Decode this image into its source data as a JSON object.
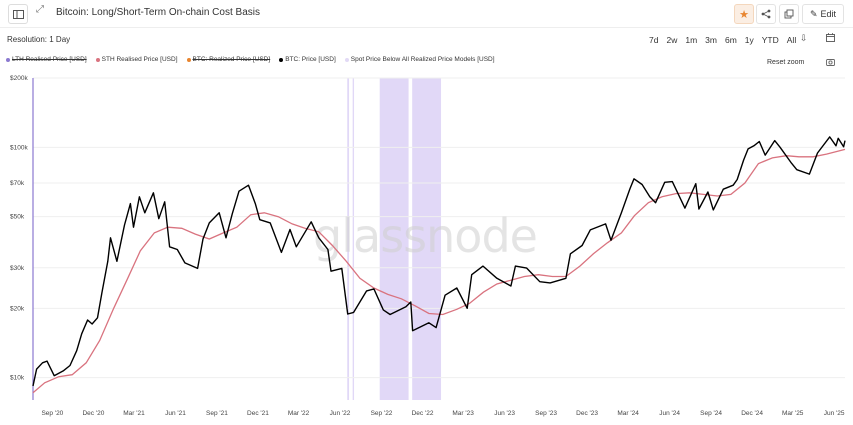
{
  "header": {
    "title": "Bitcoin: Long/Short-Term On-chain Cost Basis",
    "edit_label": "Edit"
  },
  "controls": {
    "resolution": "Resolution: 1 Day",
    "ranges": [
      "7d",
      "2w",
      "1m",
      "3m",
      "6m",
      "1y",
      "YTD",
      "All"
    ],
    "reset_zoom": "Reset zoom"
  },
  "icons": {
    "sidebar": "sidebar-toggle-icon",
    "expand": "expand-icon",
    "favorite": "star-icon",
    "share": "share-icon",
    "copy": "copy-icon",
    "edit": "edit-icon",
    "export": "export-icon",
    "calendar": "calendar-icon",
    "camera": "camera-icon"
  },
  "colors": {
    "btc_price": "#000000",
    "sth_realised": "#d9737f",
    "lth_realised": "#8b79d0",
    "btc_realized": "#e8852f",
    "spot_below": "#c9b8f0",
    "accent": "#e8852f"
  },
  "chart_data": {
    "type": "line",
    "y_scale": "log",
    "ylim": [
      8000,
      200000
    ],
    "y_ticks": [
      {
        "value": 10000,
        "label": "$10k"
      },
      {
        "value": 20000,
        "label": "$20k"
      },
      {
        "value": 30000,
        "label": "$30k"
      },
      {
        "value": 50000,
        "label": "$50k"
      },
      {
        "value": 70000,
        "label": "$70k"
      },
      {
        "value": 100000,
        "label": "$100k"
      },
      {
        "value": 200000,
        "label": "$200k"
      }
    ],
    "x_range": [
      "2020-07-20",
      "2025-06-25"
    ],
    "x_ticks": [
      {
        "date": "2020-09-01",
        "label": "Sep '20"
      },
      {
        "date": "2020-12-01",
        "label": "Dec '20"
      },
      {
        "date": "2021-03-01",
        "label": "Mar '21"
      },
      {
        "date": "2021-06-01",
        "label": "Jun '21"
      },
      {
        "date": "2021-09-01",
        "label": "Sep '21"
      },
      {
        "date": "2021-12-01",
        "label": "Dec '21"
      },
      {
        "date": "2022-03-01",
        "label": "Mar '22"
      },
      {
        "date": "2022-06-01",
        "label": "Jun '22"
      },
      {
        "date": "2022-09-01",
        "label": "Sep '22"
      },
      {
        "date": "2022-12-01",
        "label": "Dec '22"
      },
      {
        "date": "2023-03-01",
        "label": "Mar '23"
      },
      {
        "date": "2023-06-01",
        "label": "Jun '23"
      },
      {
        "date": "2023-09-01",
        "label": "Sep '23"
      },
      {
        "date": "2023-12-01",
        "label": "Dec '23"
      },
      {
        "date": "2024-03-01",
        "label": "Mar '24"
      },
      {
        "date": "2024-06-01",
        "label": "Jun '24"
      },
      {
        "date": "2024-09-01",
        "label": "Sep '24"
      },
      {
        "date": "2024-12-01",
        "label": "Dec '24"
      },
      {
        "date": "2025-03-01",
        "label": "Mar '25"
      },
      {
        "date": "2025-06-01",
        "label": "Jun '25"
      }
    ],
    "legend": [
      {
        "name": "LTH Realised Price [USD]",
        "color": "#8b79d0",
        "hidden": true
      },
      {
        "name": "STH Realised Price [USD]",
        "color": "#d9737f",
        "hidden": false
      },
      {
        "name": "BTC: Realized Price [USD]",
        "color": "#e8852f",
        "hidden": true
      },
      {
        "name": "BTC: Price [USD]",
        "color": "#000000",
        "hidden": false
      },
      {
        "name": "Spot Price Below All Realized Price Models [USD]",
        "color": "#c9b8f0",
        "hidden": false
      }
    ],
    "series": [
      {
        "name": "BTC: Price [USD]",
        "color": "#000000",
        "points": [
          [
            "2020-07-20",
            9200
          ],
          [
            "2020-07-28",
            10900
          ],
          [
            "2020-08-10",
            11600
          ],
          [
            "2020-08-20",
            11800
          ],
          [
            "2020-09-05",
            10200
          ],
          [
            "2020-09-25",
            10700
          ],
          [
            "2020-10-10",
            11300
          ],
          [
            "2020-10-25",
            13100
          ],
          [
            "2020-11-05",
            15500
          ],
          [
            "2020-11-18",
            17800
          ],
          [
            "2020-11-28",
            17100
          ],
          [
            "2020-12-10",
            18200
          ],
          [
            "2020-12-20",
            23500
          ],
          [
            "2021-01-02",
            32000
          ],
          [
            "2021-01-08",
            40500
          ],
          [
            "2021-01-22",
            32000
          ],
          [
            "2021-02-08",
            46000
          ],
          [
            "2021-02-21",
            57000
          ],
          [
            "2021-02-28",
            45000
          ],
          [
            "2021-03-13",
            61000
          ],
          [
            "2021-03-25",
            52000
          ],
          [
            "2021-04-13",
            63500
          ],
          [
            "2021-04-25",
            49000
          ],
          [
            "2021-05-08",
            58000
          ],
          [
            "2021-05-19",
            37000
          ],
          [
            "2021-06-05",
            36000
          ],
          [
            "2021-06-22",
            31500
          ],
          [
            "2021-07-20",
            29800
          ],
          [
            "2021-08-01",
            40000
          ],
          [
            "2021-08-15",
            47000
          ],
          [
            "2021-09-06",
            52000
          ],
          [
            "2021-09-21",
            40500
          ],
          [
            "2021-10-05",
            51500
          ],
          [
            "2021-10-20",
            64500
          ],
          [
            "2021-11-10",
            68500
          ],
          [
            "2021-11-25",
            57000
          ],
          [
            "2021-12-05",
            48500
          ],
          [
            "2021-12-28",
            47000
          ],
          [
            "2022-01-22",
            35000
          ],
          [
            "2022-02-10",
            44000
          ],
          [
            "2022-02-24",
            37000
          ],
          [
            "2022-03-29",
            47500
          ],
          [
            "2022-04-15",
            40500
          ],
          [
            "2022-05-05",
            36000
          ],
          [
            "2022-05-12",
            29000
          ],
          [
            "2022-06-05",
            29800
          ],
          [
            "2022-06-18",
            18900
          ],
          [
            "2022-07-01",
            19200
          ],
          [
            "2022-07-30",
            23800
          ],
          [
            "2022-08-15",
            24300
          ],
          [
            "2022-09-05",
            19700
          ],
          [
            "2022-09-20",
            18800
          ],
          [
            "2022-10-25",
            20300
          ],
          [
            "2022-11-05",
            21300
          ],
          [
            "2022-11-09",
            16000
          ],
          [
            "2022-12-15",
            17300
          ],
          [
            "2022-12-31",
            16500
          ],
          [
            "2023-01-20",
            22800
          ],
          [
            "2023-02-15",
            24500
          ],
          [
            "2023-03-10",
            20000
          ],
          [
            "2023-03-20",
            28000
          ],
          [
            "2023-04-14",
            30500
          ],
          [
            "2023-05-15",
            27000
          ],
          [
            "2023-06-15",
            25000
          ],
          [
            "2023-06-25",
            30500
          ],
          [
            "2023-07-20",
            29900
          ],
          [
            "2023-08-18",
            26100
          ],
          [
            "2023-09-10",
            25800
          ],
          [
            "2023-10-15",
            27000
          ],
          [
            "2023-10-25",
            34500
          ],
          [
            "2023-11-20",
            37500
          ],
          [
            "2023-12-08",
            43800
          ],
          [
            "2024-01-11",
            46500
          ],
          [
            "2024-01-23",
            39500
          ],
          [
            "2024-02-15",
            52000
          ],
          [
            "2024-03-05",
            66000
          ],
          [
            "2024-03-14",
            73000
          ],
          [
            "2024-04-01",
            69000
          ],
          [
            "2024-04-18",
            61000
          ],
          [
            "2024-05-01",
            57500
          ],
          [
            "2024-05-21",
            70500
          ],
          [
            "2024-06-07",
            71000
          ],
          [
            "2024-07-05",
            54500
          ],
          [
            "2024-07-29",
            69500
          ],
          [
            "2024-08-05",
            54000
          ],
          [
            "2024-08-25",
            64000
          ],
          [
            "2024-09-06",
            53500
          ],
          [
            "2024-09-28",
            65800
          ],
          [
            "2024-10-20",
            68500
          ],
          [
            "2024-10-29",
            72500
          ],
          [
            "2024-11-12",
            88000
          ],
          [
            "2024-11-22",
            98500
          ],
          [
            "2024-12-05",
            101500
          ],
          [
            "2024-12-17",
            106000
          ],
          [
            "2024-12-30",
            92500
          ],
          [
            "2025-01-20",
            107000
          ],
          [
            "2025-02-01",
            100000
          ],
          [
            "2025-02-25",
            86000
          ],
          [
            "2025-03-10",
            80000
          ],
          [
            "2025-04-07",
            76500
          ],
          [
            "2025-04-25",
            94500
          ],
          [
            "2025-05-22",
            111000
          ],
          [
            "2025-06-05",
            101500
          ],
          [
            "2025-06-10",
            109500
          ],
          [
            "2025-06-22",
            100500
          ],
          [
            "2025-06-25",
            107000
          ]
        ]
      },
      {
        "name": "STH Realised Price [USD]",
        "color": "#d9737f",
        "points": [
          [
            "2020-07-20",
            8600
          ],
          [
            "2020-08-15",
            9500
          ],
          [
            "2020-09-15",
            10100
          ],
          [
            "2020-10-15",
            10300
          ],
          [
            "2020-11-15",
            11600
          ],
          [
            "2020-12-15",
            14500
          ],
          [
            "2021-01-15",
            20000
          ],
          [
            "2021-02-15",
            27000
          ],
          [
            "2021-03-15",
            35500
          ],
          [
            "2021-04-15",
            42500
          ],
          [
            "2021-05-15",
            45000
          ],
          [
            "2021-06-15",
            44500
          ],
          [
            "2021-07-15",
            42000
          ],
          [
            "2021-08-15",
            40000
          ],
          [
            "2021-09-15",
            42500
          ],
          [
            "2021-10-15",
            45000
          ],
          [
            "2021-11-15",
            51000
          ],
          [
            "2021-12-15",
            52000
          ],
          [
            "2022-01-15",
            50000
          ],
          [
            "2022-02-15",
            46500
          ],
          [
            "2022-03-15",
            44500
          ],
          [
            "2022-04-15",
            43000
          ],
          [
            "2022-05-15",
            37500
          ],
          [
            "2022-06-15",
            32000
          ],
          [
            "2022-07-15",
            27000
          ],
          [
            "2022-08-15",
            24500
          ],
          [
            "2022-09-15",
            23000
          ],
          [
            "2022-10-15",
            22000
          ],
          [
            "2022-11-15",
            20500
          ],
          [
            "2022-12-15",
            19000
          ],
          [
            "2023-01-15",
            18800
          ],
          [
            "2023-02-15",
            19800
          ],
          [
            "2023-03-15",
            21000
          ],
          [
            "2023-04-15",
            23500
          ],
          [
            "2023-05-15",
            25500
          ],
          [
            "2023-06-15",
            26500
          ],
          [
            "2023-07-15",
            27500
          ],
          [
            "2023-08-15",
            28000
          ],
          [
            "2023-09-15",
            27500
          ],
          [
            "2023-10-15",
            27500
          ],
          [
            "2023-11-15",
            30500
          ],
          [
            "2023-12-15",
            34500
          ],
          [
            "2024-01-15",
            38500
          ],
          [
            "2024-02-15",
            42500
          ],
          [
            "2024-03-15",
            50500
          ],
          [
            "2024-04-15",
            57500
          ],
          [
            "2024-05-15",
            61000
          ],
          [
            "2024-06-15",
            63000
          ],
          [
            "2024-07-15",
            63500
          ],
          [
            "2024-08-15",
            62500
          ],
          [
            "2024-09-15",
            61500
          ],
          [
            "2024-10-15",
            62500
          ],
          [
            "2024-11-15",
            70000
          ],
          [
            "2024-12-15",
            85000
          ],
          [
            "2025-01-15",
            90000
          ],
          [
            "2025-02-15",
            92000
          ],
          [
            "2025-03-15",
            91000
          ],
          [
            "2025-04-15",
            91000
          ],
          [
            "2025-05-15",
            93500
          ],
          [
            "2025-06-25",
            98000
          ]
        ]
      }
    ],
    "shaded_bands": [
      [
        "2022-06-17",
        "2022-06-21"
      ],
      [
        "2022-06-29",
        "2022-07-02"
      ],
      [
        "2022-08-28",
        "2022-10-31"
      ],
      [
        "2022-11-08",
        "2023-01-11"
      ]
    ],
    "watermark": "glassnode"
  }
}
